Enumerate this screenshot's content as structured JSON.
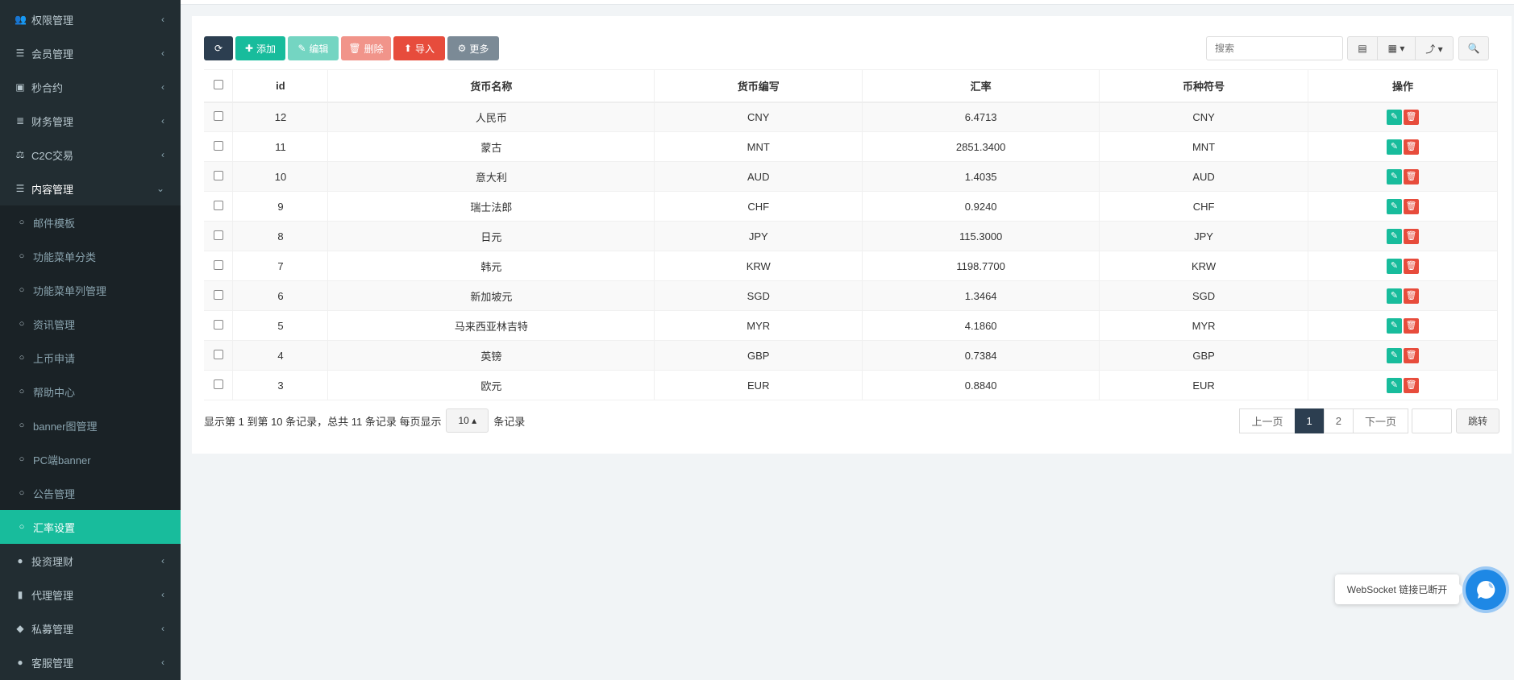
{
  "sidebar": {
    "items": [
      {
        "label": "权限管理",
        "icon": "users-icon",
        "glyph": "👥"
      },
      {
        "label": "会员管理",
        "icon": "list-icon",
        "glyph": "☰"
      },
      {
        "label": "秒合约",
        "icon": "calendar-icon",
        "glyph": "▣"
      },
      {
        "label": "财务管理",
        "icon": "database-icon",
        "glyph": "≣"
      },
      {
        "label": "C2C交易",
        "icon": "balance-scale-icon",
        "glyph": "⚖"
      },
      {
        "label": "内容管理",
        "icon": "align-left-icon",
        "glyph": "☰"
      }
    ],
    "sub_items": [
      {
        "label": "邮件模板"
      },
      {
        "label": "功能菜单分类"
      },
      {
        "label": "功能菜单列管理"
      },
      {
        "label": "资讯管理"
      },
      {
        "label": "上币申请"
      },
      {
        "label": "帮助中心"
      },
      {
        "label": "banner图管理"
      },
      {
        "label": "PC端banner"
      },
      {
        "label": "公告管理"
      },
      {
        "label": "汇率设置",
        "active": true
      }
    ],
    "items_after": [
      {
        "label": "投资理财",
        "icon": "circle-icon",
        "glyph": "●"
      },
      {
        "label": "代理管理",
        "icon": "briefcase-icon",
        "glyph": "▮"
      },
      {
        "label": "私募管理",
        "icon": "diamond-icon",
        "glyph": "◆"
      },
      {
        "label": "客服管理",
        "icon": "comment-icon",
        "glyph": "●"
      }
    ]
  },
  "toolbar": {
    "refresh": "⟳",
    "add": "添加",
    "edit": "编辑",
    "delete": "删除",
    "import": "导入",
    "more": "更多",
    "search_placeholder": "搜索"
  },
  "colors": {
    "sidebar": "#222d32",
    "accent": "#18bc9c",
    "primary": "#2c3e50",
    "danger": "#e74c3c",
    "more": "#6c757d"
  },
  "table": {
    "columns": [
      "id",
      "货币名称",
      "货币编写",
      "汇率",
      "币种符号",
      "操作"
    ],
    "rows": [
      [
        "12",
        "人民币",
        "CNY",
        "6.4713",
        "CNY"
      ],
      [
        "11",
        "蒙古",
        "MNT",
        "2851.3400",
        "MNT"
      ],
      [
        "10",
        "意大利",
        "AUD",
        "1.4035",
        "AUD"
      ],
      [
        "9",
        "瑞士法郎",
        "CHF",
        "0.9240",
        "CHF"
      ],
      [
        "8",
        "日元",
        "JPY",
        "115.3000",
        "JPY"
      ],
      [
        "7",
        "韩元",
        "KRW",
        "1198.7700",
        "KRW"
      ],
      [
        "6",
        "新加坡元",
        "SGD",
        "1.3464",
        "SGD"
      ],
      [
        "5",
        "马来西亚林吉特",
        "MYR",
        "4.1860",
        "MYR"
      ],
      [
        "4",
        "英镑",
        "GBP",
        "0.7384",
        "GBP"
      ],
      [
        "3",
        "欧元",
        "EUR",
        "0.8840",
        "EUR"
      ]
    ]
  },
  "footer": {
    "summary": "显示第 1 到第 10 条记录，总共 11 条记录 每页显示",
    "page_size": "10",
    "suffix": "条记录"
  },
  "pagination": {
    "prev": "上一页",
    "pages": [
      "1",
      "2"
    ],
    "current": "1",
    "next": "下一页",
    "jump": "跳转",
    "jump_value": ""
  },
  "websocket": {
    "message": "WebSocket 链接已断开"
  }
}
